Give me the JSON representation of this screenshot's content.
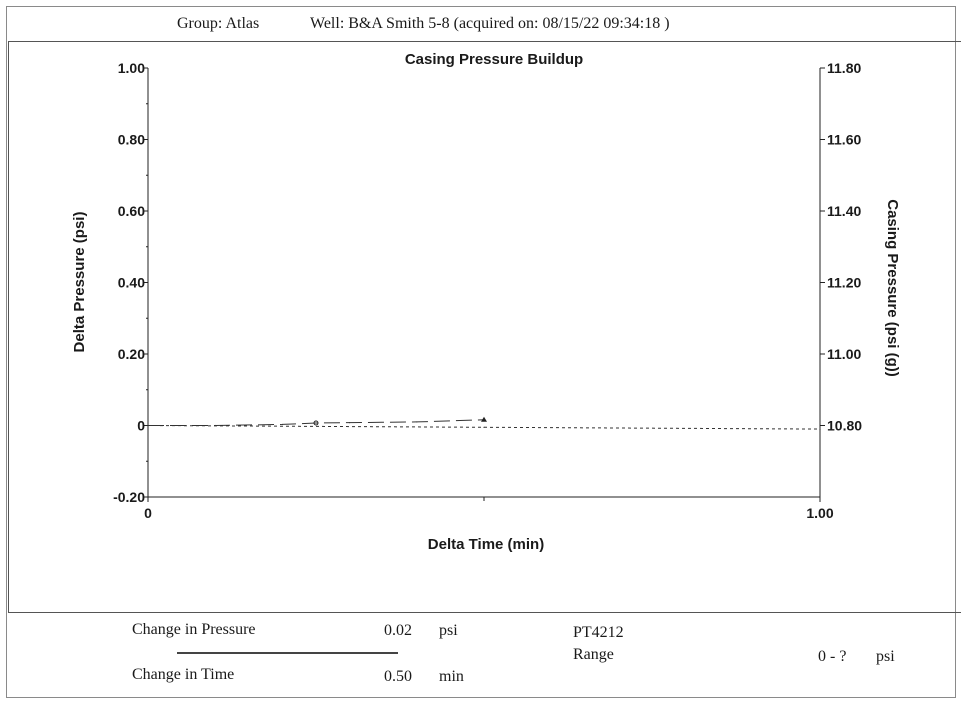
{
  "header": {
    "group": "Group: Atlas",
    "well": "Well: B&A Smith 5-8 (acquired on: 08/15/22 09:34:18 )"
  },
  "chart_data": {
    "type": "line",
    "title": "Casing Pressure Buildup",
    "xlabel": "Delta Time (min)",
    "ylabel": "Delta Pressure (psi)",
    "y2label": "Casing Pressure (psi (g))",
    "xlim": [
      0,
      1.0
    ],
    "ylim": [
      -0.2,
      1.0
    ],
    "y2lim": [
      10.6,
      11.8
    ],
    "x_ticks": [
      "0",
      "1.00"
    ],
    "y_ticks": [
      "-0.20",
      "0",
      "0.20",
      "0.40",
      "0.60",
      "0.80",
      "1.00"
    ],
    "y2_ticks": [
      "10.80",
      "11.00",
      "11.20",
      "11.40",
      "11.60",
      "11.80"
    ],
    "grid": false,
    "series": [
      {
        "axis": "left",
        "style": "long-dash",
        "x": [
          0.0,
          0.1,
          0.2,
          0.25,
          0.3,
          0.4,
          0.5
        ],
        "y": [
          0.0,
          0.0,
          0.003,
          0.007,
          0.008,
          0.01,
          0.016
        ]
      },
      {
        "axis": "right",
        "style": "short-dash",
        "x": [
          0.0,
          0.5,
          1.0
        ],
        "y": [
          10.8,
          10.795,
          10.79
        ]
      }
    ]
  },
  "footer": {
    "change_pressure_label": "Change in Pressure",
    "change_pressure_value": "0.02",
    "change_pressure_unit": "psi",
    "change_time_label": "Change in Time",
    "change_time_value": "0.50",
    "change_time_unit": "min",
    "gauge_id": "PT4212",
    "range_label": "Range",
    "range_value": "0 - ?",
    "range_unit": "psi"
  }
}
